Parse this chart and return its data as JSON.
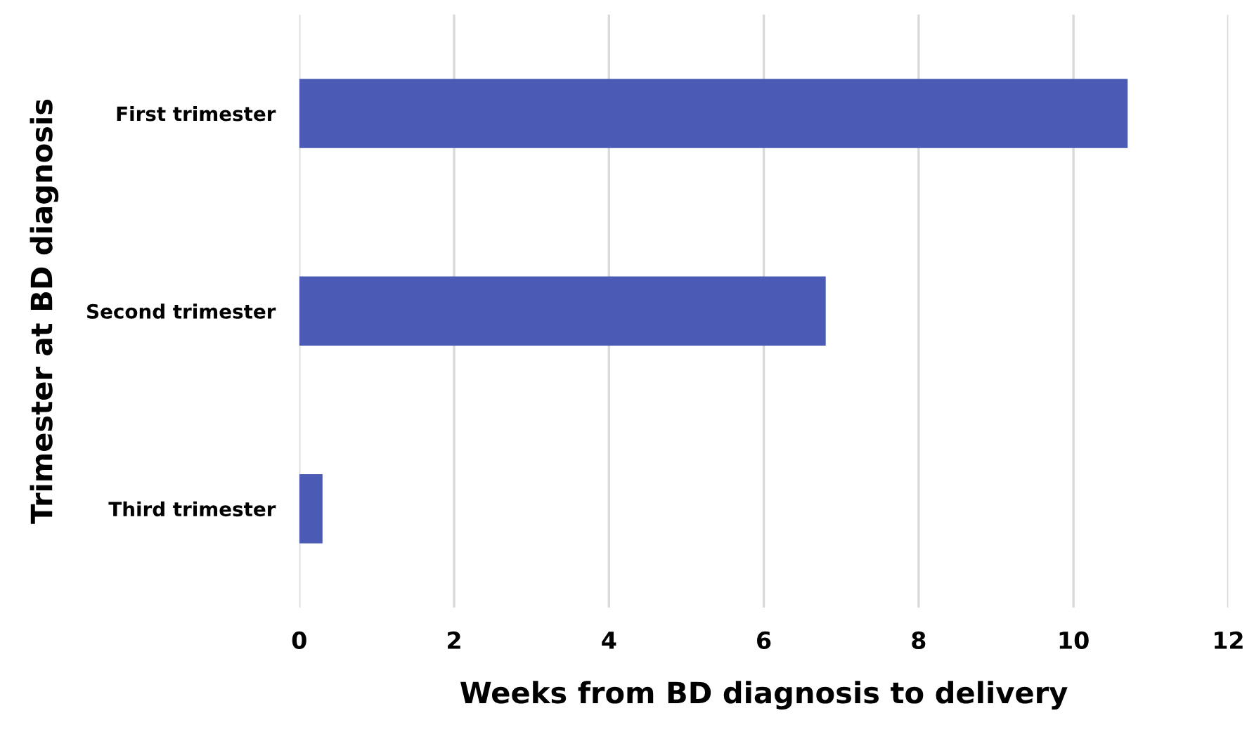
{
  "chart_data": {
    "type": "bar",
    "orientation": "horizontal",
    "xlabel": "Weeks from BD diagnosis to delivery",
    "ylabel": "Trimester at BD diagnosis",
    "categories": [
      "First trimester",
      "Second trimester",
      "Third trimester"
    ],
    "values": [
      10.7,
      6.8,
      0.3
    ],
    "color": "#4a5ab5",
    "xlim": [
      0,
      12
    ],
    "xticks": [
      0,
      2,
      4,
      6,
      8,
      10,
      12
    ],
    "grid": "x",
    "legend": false
  }
}
